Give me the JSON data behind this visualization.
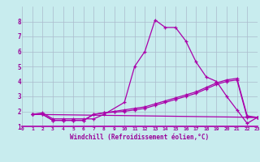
{
  "xlabel": "Windchill (Refroidissement éolien,°C)",
  "bg_color": "#c8ecee",
  "line_color": "#aa00aa",
  "grid_color": "#aabbcc",
  "tick_label_color": "#990099",
  "xlim": [
    0,
    23
  ],
  "ylim": [
    1,
    9
  ],
  "yticks": [
    1,
    2,
    3,
    4,
    5,
    6,
    7,
    8
  ],
  "xticks": [
    0,
    1,
    2,
    3,
    4,
    5,
    6,
    7,
    8,
    9,
    10,
    11,
    12,
    13,
    14,
    15,
    16,
    17,
    18,
    19,
    20,
    21,
    22,
    23
  ],
  "lines": [
    {
      "x": [
        1,
        2,
        3,
        4,
        5,
        6,
        7,
        8,
        10,
        11,
        12,
        13,
        14,
        15,
        16,
        17,
        18,
        19,
        20,
        21,
        22,
        23
      ],
      "y": [
        1.8,
        1.9,
        1.5,
        1.5,
        1.5,
        1.5,
        1.5,
        1.8,
        2.6,
        5.0,
        6.0,
        8.1,
        7.6,
        7.6,
        6.7,
        5.3,
        4.3,
        4.0,
        3.0,
        2.1,
        1.2,
        1.6
      ]
    },
    {
      "x": [
        1,
        2,
        3,
        4,
        5,
        6,
        7,
        8,
        9,
        10,
        11,
        12,
        13,
        14,
        15,
        16,
        17,
        18,
        19,
        20,
        21,
        22,
        23
      ],
      "y": [
        1.8,
        1.8,
        1.4,
        1.4,
        1.4,
        1.4,
        1.8,
        1.9,
        1.95,
        2.0,
        2.1,
        2.2,
        2.4,
        2.6,
        2.8,
        3.0,
        3.2,
        3.5,
        3.8,
        4.0,
        4.1,
        1.6,
        1.6
      ]
    },
    {
      "x": [
        1,
        2,
        3,
        4,
        5,
        6,
        7,
        8,
        9,
        10,
        11,
        12,
        13,
        14,
        15,
        16,
        17,
        18,
        19,
        20,
        21,
        22,
        23
      ],
      "y": [
        1.8,
        1.8,
        1.4,
        1.4,
        1.4,
        1.4,
        1.8,
        1.9,
        2.0,
        2.1,
        2.2,
        2.3,
        2.5,
        2.7,
        2.9,
        3.1,
        3.3,
        3.6,
        3.9,
        4.1,
        4.2,
        1.7,
        1.6
      ]
    },
    {
      "x": [
        1,
        23
      ],
      "y": [
        1.8,
        1.6
      ]
    }
  ]
}
